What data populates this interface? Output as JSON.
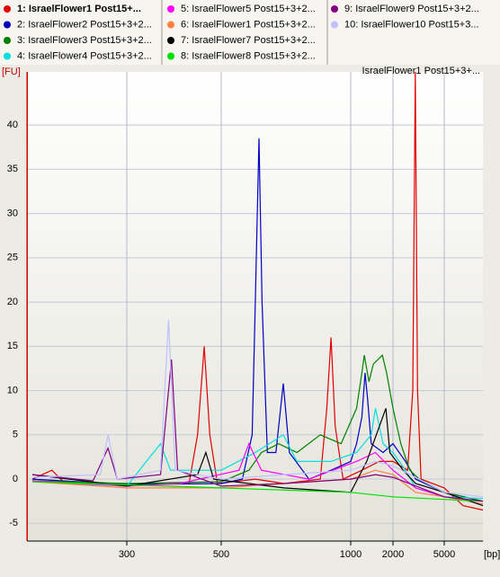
{
  "chart_data": {
    "type": "line",
    "title": "IsraelFlower1 Post15+3+...",
    "y_label": "[FU]",
    "x_label": "[bp]",
    "xlim": [
      175,
      10000
    ],
    "ylim": [
      -7,
      46
    ],
    "xticks": [
      300,
      500,
      1000,
      2000,
      5000
    ],
    "yticks": [
      -5,
      0,
      5,
      10,
      15,
      20,
      25,
      30,
      35,
      40
    ],
    "grid": true,
    "series": [
      {
        "name": "1: IsraelFlower1 Post15+...",
        "color": "#e00000",
        "x": [
          180,
          200,
          215,
          300,
          420,
          440,
          456,
          470,
          490,
          600,
          700,
          850,
          880,
          900,
          920,
          960,
          1200,
          1600,
          2000,
          2600,
          2850,
          2980,
          3100,
          3300,
          5000,
          7000,
          10000
        ],
        "values": [
          0,
          1,
          -0.5,
          -0.6,
          -0.5,
          5,
          15,
          5,
          -0.5,
          0,
          -0.5,
          0,
          8,
          16,
          6,
          0,
          1,
          2,
          2,
          1,
          10,
          46,
          10,
          0,
          -1,
          -3,
          -3.5
        ]
      },
      {
        "name": "2: IsraelFlower2 Post15+3+2...",
        "color": "#0000c0",
        "x": [
          180,
          300,
          500,
          560,
          590,
          600,
          612,
          622,
          640,
          670,
          697,
          720,
          800,
          900,
          1000,
          1100,
          1200,
          1266,
          1320,
          1400,
          1700,
          2000,
          2500,
          3000,
          5000,
          10000
        ],
        "values": [
          0,
          -0.6,
          -0.5,
          0,
          5,
          20,
          38.5,
          20,
          3,
          3,
          10.8,
          3,
          0,
          1,
          2,
          4,
          7,
          12,
          9,
          4,
          3,
          4,
          2,
          0,
          -1.5,
          -2.5
        ]
      },
      {
        "name": "3: IsraelFlower3 Post15+3+2...",
        "color": "#008000",
        "x": [
          180,
          300,
          500,
          580,
          620,
          680,
          750,
          850,
          950,
          1100,
          1200,
          1250,
          1350,
          1450,
          1680,
          1800,
          2000,
          2300,
          2700,
          3200,
          5000,
          10000
        ],
        "values": [
          -0.2,
          -0.5,
          -0.3,
          1,
          3,
          4,
          3,
          5,
          4,
          8,
          12,
          14,
          11,
          13,
          14,
          12,
          8,
          4,
          1,
          0,
          -1.5,
          -2.5
        ]
      },
      {
        "name": "4: IsraelFlower4 Post15+3+2...",
        "color": "#00e0e0",
        "x": [
          180,
          300,
          360,
          380,
          500,
          600,
          697,
          750,
          900,
          1100,
          1400,
          1500,
          1700,
          2000,
          2500,
          3000,
          5000,
          10000
        ],
        "values": [
          -0.3,
          -0.8,
          4,
          1,
          1,
          3,
          5,
          2,
          2,
          3,
          5,
          8,
          4,
          3,
          1,
          -1,
          -2,
          -2.2
        ]
      },
      {
        "name": "5: IsraelFlower5 Post15+3+2...",
        "color": "#ff00ff",
        "x": [
          180,
          300,
          400,
          550,
          580,
          620,
          800,
          1100,
          1500,
          2000,
          3000,
          5000,
          10000
        ],
        "values": [
          -0.2,
          -0.8,
          -0.5,
          1,
          4,
          1,
          0,
          2,
          3,
          1,
          -1,
          -2,
          -2.5
        ]
      },
      {
        "name": "6: IsraelFlower1 Post15+3+2...",
        "color": "#ff8040",
        "x": [
          180,
          300,
          500,
          700,
          1000,
          1500,
          2000,
          3000,
          5000,
          10000
        ],
        "values": [
          -0.3,
          -1,
          -1,
          -0.5,
          0,
          1,
          0.5,
          -1.5,
          -2,
          -2.8
        ]
      },
      {
        "name": "7: IsraelFlower7 Post15+3+2...",
        "color": "#000000",
        "x": [
          180,
          300,
          440,
          460,
          480,
          700,
          1000,
          1300,
          1780,
          1900,
          2400,
          3000,
          5000,
          10000
        ],
        "values": [
          0.5,
          -0.8,
          0.5,
          3,
          0,
          -1,
          -1.5,
          2,
          8,
          3,
          1,
          -0.5,
          -1.5,
          -3
        ]
      },
      {
        "name": "8: IsraelFlower8 Post15+3+2...",
        "color": "#00e000",
        "x": [
          180,
          500,
          1000,
          2000,
          5000,
          10000
        ],
        "values": [
          -0.3,
          -1,
          -1.5,
          -2,
          -2.3,
          -2.5
        ]
      },
      {
        "name": "9: IsraelFlower9 Post15+3+2...",
        "color": "#800080",
        "x": [
          180,
          250,
          271,
          285,
          360,
          382,
          395,
          500,
          700,
          1000,
          1500,
          2000,
          5000,
          10000
        ],
        "values": [
          0.5,
          -0.2,
          3.5,
          0,
          0.5,
          13.5,
          1,
          -0.8,
          -0.5,
          0,
          0.5,
          0.2,
          -2,
          -2.5
        ]
      },
      {
        "name": "10: IsraelFlower10 Post15+3...",
        "color": "#c0c0ff",
        "x": [
          180,
          260,
          271,
          285,
          360,
          376,
          390,
          500,
          700,
          1000,
          1500,
          2000,
          5000,
          10000
        ],
        "values": [
          0.2,
          0.5,
          5,
          0,
          1,
          18,
          1,
          0,
          0.5,
          1,
          2,
          1.5,
          -1.5,
          -2
        ]
      }
    ]
  }
}
